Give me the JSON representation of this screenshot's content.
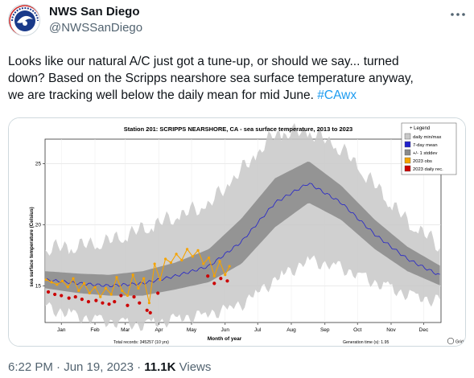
{
  "account": {
    "name": "NWS San Diego",
    "handle": "@NWSSanDiego",
    "avatar_icon": "nws-logo-icon",
    "avatar_ring_text": "NATIONAL WEATHER SERVICE",
    "avatar_color": "#1a3a8a"
  },
  "tweet": {
    "line1": "Looks like our natural A/C just got a tune-up, or should we say... turned",
    "line2": "down? Based on the Scripps nearshore sea surface temperature anyway,",
    "line3_text": "we are tracking well below the daily mean for mid June. ",
    "hashtag": "#CAwx",
    "hashtag_color": "#1d9bf0"
  },
  "footer": {
    "time": "6:22 PM · Jun 19, 2023 · ",
    "views_count": "11.1K",
    "views_label": " Views"
  },
  "chart_data": {
    "type": "area",
    "title": "Station 201: SCRIPPS NEARSHORE, CA - sea surface temperature, 2013 to 2023",
    "xlabel": "Month of year",
    "ylabel": "sea surface temperature (Celsius)",
    "categories": [
      "Jan",
      "Feb",
      "Mar",
      "Apr",
      "May",
      "Jun",
      "Jul",
      "Aug",
      "Sep",
      "Oct",
      "Nov",
      "Dec"
    ],
    "ylim": [
      12,
      27
    ],
    "yticks": [
      15,
      20,
      25
    ],
    "grid": true,
    "legend_position": "top-right",
    "legend_title": "Legend",
    "legend": [
      {
        "name": "daily min/max",
        "color": "#c8c8c8"
      },
      {
        "name": "7-day mean",
        "color": "#2222cc"
      },
      {
        "name": "+/- 1 stddev",
        "color": "#8a8a8a"
      },
      {
        "name": "2023 obs",
        "color": "#f5a300"
      },
      {
        "name": "2023 daily rec.",
        "color": "#cc0000"
      }
    ],
    "footer_left": "Total records: 345257 (10 yrs)",
    "footer_right": "Generation time (s): 1.95",
    "grid_toggle_label": "Grid",
    "x_day": [
      0,
      31,
      59,
      90,
      120,
      151,
      181,
      212,
      243,
      273,
      304,
      334,
      365
    ],
    "mean": [
      15.5,
      15.2,
      15.0,
      15.2,
      15.8,
      16.6,
      18.6,
      21.8,
      23.4,
      21.8,
      19.2,
      17.2,
      15.8
    ],
    "std_low": [
      14.8,
      14.4,
      14.2,
      14.2,
      14.7,
      15.3,
      16.8,
      19.8,
      21.8,
      20.4,
      18.0,
      16.2,
      15.0
    ],
    "std_high": [
      16.2,
      16.0,
      15.9,
      16.2,
      16.9,
      18.0,
      20.5,
      23.8,
      25.2,
      23.2,
      20.4,
      18.2,
      16.6
    ],
    "minmax_low": [
      13.8,
      13.0,
      12.6,
      12.3,
      12.8,
      13.2,
      14.0,
      16.0,
      17.6,
      17.0,
      15.8,
      14.8,
      14.2
    ],
    "minmax_high": [
      17.4,
      17.6,
      18.0,
      19.0,
      20.0,
      21.0,
      23.8,
      26.8,
      27.0,
      25.6,
      22.6,
      19.6,
      17.6
    ],
    "obs_2023": {
      "day": [
        1,
        6,
        11,
        16,
        21,
        26,
        31,
        36,
        41,
        46,
        51,
        56,
        61,
        66,
        71,
        76,
        81,
        86,
        91,
        96,
        101,
        106,
        111,
        116,
        121,
        126,
        131,
        136,
        141,
        146,
        151,
        156,
        161,
        166,
        170
      ],
      "temp": [
        15.5,
        15.3,
        15.1,
        15.4,
        14.9,
        15.6,
        14.6,
        15.2,
        14.4,
        14.9,
        14.1,
        14.8,
        14.3,
        15.7,
        14.6,
        14.2,
        15.9,
        14.8,
        15.6,
        13.6,
        16.8,
        15.5,
        17.2,
        16.9,
        17.6,
        17.1,
        18.0,
        17.4,
        17.9,
        16.8,
        17.3,
        15.8,
        17.0,
        15.9,
        16.6
      ]
    },
    "record_2023": {
      "day": [
        3,
        9,
        15,
        22,
        28,
        34,
        40,
        47,
        53,
        59,
        64,
        70,
        76,
        82,
        87,
        94,
        97,
        104,
        150,
        156,
        162,
        168
      ],
      "temp": [
        14.5,
        14.3,
        14.2,
        14.0,
        14.1,
        13.9,
        13.7,
        13.8,
        13.6,
        13.5,
        13.7,
        14.2,
        13.4,
        14.1,
        13.6,
        13.0,
        12.8,
        14.4,
        15.8,
        15.2,
        15.6,
        15.4
      ]
    }
  }
}
